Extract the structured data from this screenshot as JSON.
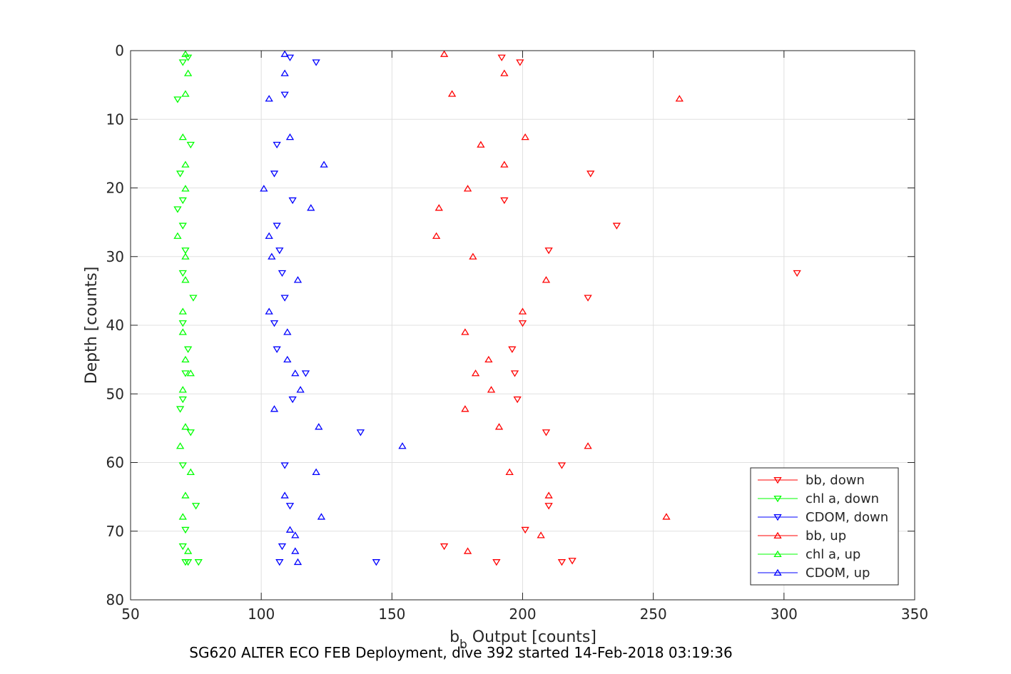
{
  "colors": {
    "bb": "#ff0000",
    "chl": "#00ff00",
    "cdom": "#0000ff",
    "axis": "#262626",
    "grid": "#e0e0e0"
  },
  "caption": "SG620 ALTER ECO FEB Deployment, dive 392 started 14-Feb-2018 03:19:36",
  "chart_data": {
    "type": "scatter",
    "title": "",
    "xlabel_main": "b",
    "xlabel_sub": "b",
    "xlabel_rest": " Output [counts]",
    "ylabel": "Depth [counts]",
    "xlim": [
      50,
      350
    ],
    "ylim": [
      0,
      80
    ],
    "y_reversed": true,
    "grid": true,
    "legend_placement": "bottom-right",
    "xticks": [
      "50",
      "100",
      "150",
      "200",
      "250",
      "300",
      "350"
    ],
    "yticks": [
      "0",
      "10",
      "20",
      "30",
      "40",
      "50",
      "60",
      "70",
      "80"
    ],
    "series": [
      {
        "name": "bb, down",
        "marker": "triangle-down",
        "color": "#ff0000",
        "points": [
          [
            192,
            1
          ],
          [
            199,
            1.7
          ],
          [
            226,
            17.9
          ],
          [
            193,
            21.8
          ],
          [
            236,
            25.5
          ],
          [
            210,
            29.1
          ],
          [
            305,
            32.4
          ],
          [
            225,
            36
          ],
          [
            200,
            39.7
          ],
          [
            196,
            43.5
          ],
          [
            197,
            47
          ],
          [
            198,
            50.8
          ],
          [
            209,
            55.6
          ],
          [
            215,
            60.4
          ],
          [
            210,
            66.3
          ],
          [
            201,
            69.8
          ],
          [
            170,
            72.2
          ],
          [
            190,
            74.5
          ],
          [
            215,
            74.5
          ],
          [
            219,
            74.3
          ]
        ]
      },
      {
        "name": "chl a, down",
        "marker": "triangle-down",
        "color": "#00ff00",
        "points": [
          [
            72,
            1
          ],
          [
            70,
            1.7
          ],
          [
            68,
            7.1
          ],
          [
            73,
            13.7
          ],
          [
            69,
            17.9
          ],
          [
            70,
            21.8
          ],
          [
            68,
            23.1
          ],
          [
            70,
            25.5
          ],
          [
            71,
            29.1
          ],
          [
            70,
            32.4
          ],
          [
            74,
            36
          ],
          [
            70,
            39.7
          ],
          [
            72,
            43.5
          ],
          [
            71,
            47
          ],
          [
            70,
            50.8
          ],
          [
            69,
            52.2
          ],
          [
            73,
            55.6
          ],
          [
            70,
            60.4
          ],
          [
            75,
            66.3
          ],
          [
            71,
            69.8
          ],
          [
            70,
            72.2
          ],
          [
            72,
            74.5
          ],
          [
            71,
            74.5
          ],
          [
            76,
            74.5
          ]
        ]
      },
      {
        "name": "CDOM, down",
        "marker": "triangle-down",
        "color": "#0000ff",
        "points": [
          [
            111,
            1
          ],
          [
            121,
            1.7
          ],
          [
            109,
            6.4
          ],
          [
            106,
            13.7
          ],
          [
            105,
            17.9
          ],
          [
            112,
            21.8
          ],
          [
            106,
            25.5
          ],
          [
            107,
            29.1
          ],
          [
            108,
            32.4
          ],
          [
            109,
            36
          ],
          [
            105,
            39.7
          ],
          [
            106,
            43.5
          ],
          [
            117,
            47
          ],
          [
            112,
            50.8
          ],
          [
            138,
            55.6
          ],
          [
            109,
            60.4
          ],
          [
            111,
            66.3
          ],
          [
            108,
            72.2
          ],
          [
            107,
            74.5
          ],
          [
            144,
            74.5
          ]
        ]
      },
      {
        "name": "bb, up",
        "marker": "triangle-up",
        "color": "#ff0000",
        "points": [
          [
            170,
            0.5
          ],
          [
            193,
            3.3
          ],
          [
            173,
            6.3
          ],
          [
            260,
            7
          ],
          [
            201,
            12.6
          ],
          [
            184,
            13.7
          ],
          [
            193,
            16.6
          ],
          [
            179,
            20.1
          ],
          [
            168,
            22.9
          ],
          [
            167,
            27
          ],
          [
            181,
            30
          ],
          [
            209,
            33.4
          ],
          [
            200,
            38
          ],
          [
            178,
            41
          ],
          [
            187,
            45
          ],
          [
            182,
            47
          ],
          [
            188,
            49.4
          ],
          [
            178,
            52.2
          ],
          [
            191,
            54.8
          ],
          [
            225,
            57.6
          ],
          [
            195,
            61.4
          ],
          [
            210,
            64.8
          ],
          [
            255,
            67.9
          ],
          [
            207,
            70.6
          ],
          [
            179,
            72.9
          ]
        ]
      },
      {
        "name": "chl a, up",
        "marker": "triangle-up",
        "color": "#00ff00",
        "points": [
          [
            71,
            0.5
          ],
          [
            72,
            3.3
          ],
          [
            71,
            6.3
          ],
          [
            70,
            12.6
          ],
          [
            71,
            16.6
          ],
          [
            71,
            20.1
          ],
          [
            68,
            27
          ],
          [
            71,
            30
          ],
          [
            71,
            33.4
          ],
          [
            70,
            38
          ],
          [
            70,
            41
          ],
          [
            71,
            45
          ],
          [
            73,
            47
          ],
          [
            70,
            49.4
          ],
          [
            71,
            54.8
          ],
          [
            69,
            57.6
          ],
          [
            73,
            61.4
          ],
          [
            71,
            64.8
          ],
          [
            70,
            67.9
          ],
          [
            72,
            72.9
          ]
        ]
      },
      {
        "name": "CDOM, up",
        "marker": "triangle-up",
        "color": "#0000ff",
        "points": [
          [
            109,
            0.5
          ],
          [
            109,
            3.3
          ],
          [
            103,
            7
          ],
          [
            111,
            12.6
          ],
          [
            124,
            16.6
          ],
          [
            101,
            20.1
          ],
          [
            119,
            22.9
          ],
          [
            103,
            27
          ],
          [
            104,
            30
          ],
          [
            114,
            33.4
          ],
          [
            103,
            38
          ],
          [
            110,
            41
          ],
          [
            110,
            45
          ],
          [
            113,
            47
          ],
          [
            115,
            49.4
          ],
          [
            105,
            52.2
          ],
          [
            122,
            54.8
          ],
          [
            154,
            57.6
          ],
          [
            121,
            61.4
          ],
          [
            109,
            64.8
          ],
          [
            123,
            67.9
          ],
          [
            111,
            69.8
          ],
          [
            113,
            70.6
          ],
          [
            113,
            72.9
          ],
          [
            114,
            74.5
          ]
        ]
      }
    ]
  }
}
